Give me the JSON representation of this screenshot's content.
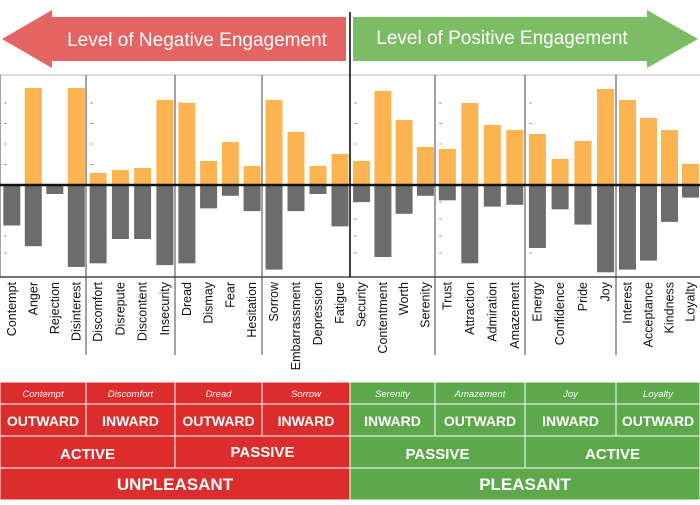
{
  "header": {
    "negative_title": "Level of Negative Engagement",
    "positive_title": "Level of Positive Engagement"
  },
  "colors": {
    "red": "#dc2c2c",
    "red_arrow": "#e46464",
    "green": "#5ca84a",
    "green_arrow": "#7cbc64",
    "bar_positive": "#fcb451",
    "bar_negative": "#6c6c6c",
    "white": "#ffffff",
    "text": "#111111"
  },
  "chart_data": {
    "type": "bar",
    "title": "Level of Negative Engagement / Level of Positive Engagement",
    "ylim": [
      -100,
      100
    ],
    "groups": [
      {
        "family": "Contempt",
        "direction": "OUTWARD",
        "items": [
          {
            "name": "Contempt",
            "up": 0,
            "down": -45
          },
          {
            "name": "Anger",
            "up": 97,
            "down": -68
          },
          {
            "name": "Rejection",
            "up": 0,
            "down": -10
          },
          {
            "name": "Disinterest",
            "up": 97,
            "down": -91
          }
        ]
      },
      {
        "family": "Discomfort",
        "direction": "INWARD",
        "items": [
          {
            "name": "Discomfort",
            "up": 12,
            "down": -87
          },
          {
            "name": "Disrepute",
            "up": 15,
            "down": -60
          },
          {
            "name": "Discontent",
            "up": 17,
            "down": -60
          },
          {
            "name": "Insecurity",
            "up": 85,
            "down": -89
          }
        ]
      },
      {
        "family": "Dread",
        "direction": "OUTWARD",
        "items": [
          {
            "name": "Dread",
            "up": 82,
            "down": -87
          },
          {
            "name": "Dismay",
            "up": 24,
            "down": -26
          },
          {
            "name": "Fear",
            "up": 43,
            "down": -12
          },
          {
            "name": "Hesitation",
            "up": 19,
            "down": -29
          }
        ]
      },
      {
        "family": "Sorrow",
        "direction": "INWARD",
        "items": [
          {
            "name": "Sorrow",
            "up": 85,
            "down": -94
          },
          {
            "name": "Embarrassment",
            "up": 53,
            "down": -29
          },
          {
            "name": "Depression",
            "up": 19,
            "down": -10
          },
          {
            "name": "Fatigue",
            "up": 31,
            "down": -46
          }
        ]
      },
      {
        "family": "Serenity",
        "direction": "INWARD",
        "items": [
          {
            "name": "Security",
            "up": 24,
            "down": -19
          },
          {
            "name": "Contentment",
            "up": 94,
            "down": -80
          },
          {
            "name": "Worth",
            "up": 65,
            "down": -32
          },
          {
            "name": "Serenity",
            "up": 38,
            "down": -12
          }
        ]
      },
      {
        "family": "Amazement",
        "direction": "OUTWARD",
        "items": [
          {
            "name": "Trust",
            "up": 36,
            "down": -17
          },
          {
            "name": "Attraction",
            "up": 82,
            "down": -87
          },
          {
            "name": "Admiration",
            "up": 60,
            "down": -24
          },
          {
            "name": "Amazement",
            "up": 55,
            "down": -22
          }
        ]
      },
      {
        "family": "Joy",
        "direction": "INWARD",
        "items": [
          {
            "name": "Energy",
            "up": 51,
            "down": -70
          },
          {
            "name": "Confidence",
            "up": 26,
            "down": -27
          },
          {
            "name": "Pride",
            "up": 44,
            "down": -44
          },
          {
            "name": "Joy",
            "up": 96,
            "down": -97
          }
        ]
      },
      {
        "family": "Loyalty",
        "direction": "OUTWARD",
        "items": [
          {
            "name": "Interest",
            "up": 85,
            "down": -94
          },
          {
            "name": "Acceptance",
            "up": 67,
            "down": -84
          },
          {
            "name": "Kindness",
            "up": 55,
            "down": -41
          },
          {
            "name": "Loyalty",
            "up": 21,
            "down": -14
          }
        ]
      }
    ]
  },
  "footer": {
    "activity": [
      "ACTIVE",
      "PASSIVE",
      "PASSIVE",
      "ACTIVE"
    ],
    "valence": [
      "UNPLEASANT",
      "PLEASANT"
    ]
  }
}
